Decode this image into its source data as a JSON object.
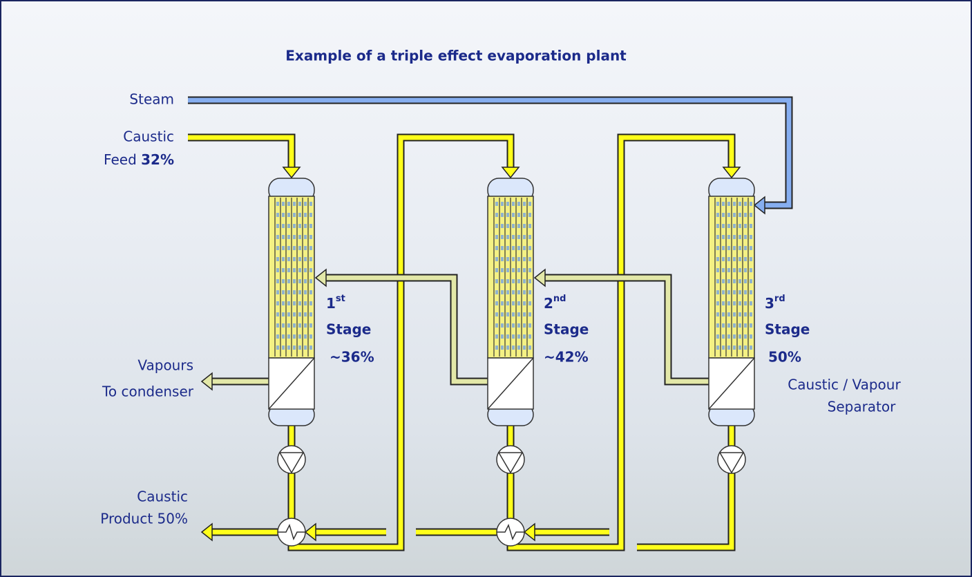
{
  "title": "Example of a triple effect evaporation plant",
  "inputs": {
    "steam": "Steam",
    "caustic_feed": {
      "line1": "Caustic",
      "line2": "Feed",
      "concentration": "32%"
    }
  },
  "outputs": {
    "vapours": {
      "line1": "Vapours",
      "line2": "To condenser"
    },
    "product": {
      "line1": "Caustic",
      "line2": "Product 50%"
    }
  },
  "stages": [
    {
      "number": "1",
      "suffix": "st",
      "label": "Stage",
      "concentration": "~36%"
    },
    {
      "number": "2",
      "suffix": "nd",
      "label": "Stage",
      "concentration": "~42%"
    },
    {
      "number": "3",
      "suffix": "rd",
      "label": "Stage",
      "concentration": "50%"
    }
  ],
  "separator_label": {
    "line1": "Caustic / Vapour",
    "line2": "Separator"
  }
}
